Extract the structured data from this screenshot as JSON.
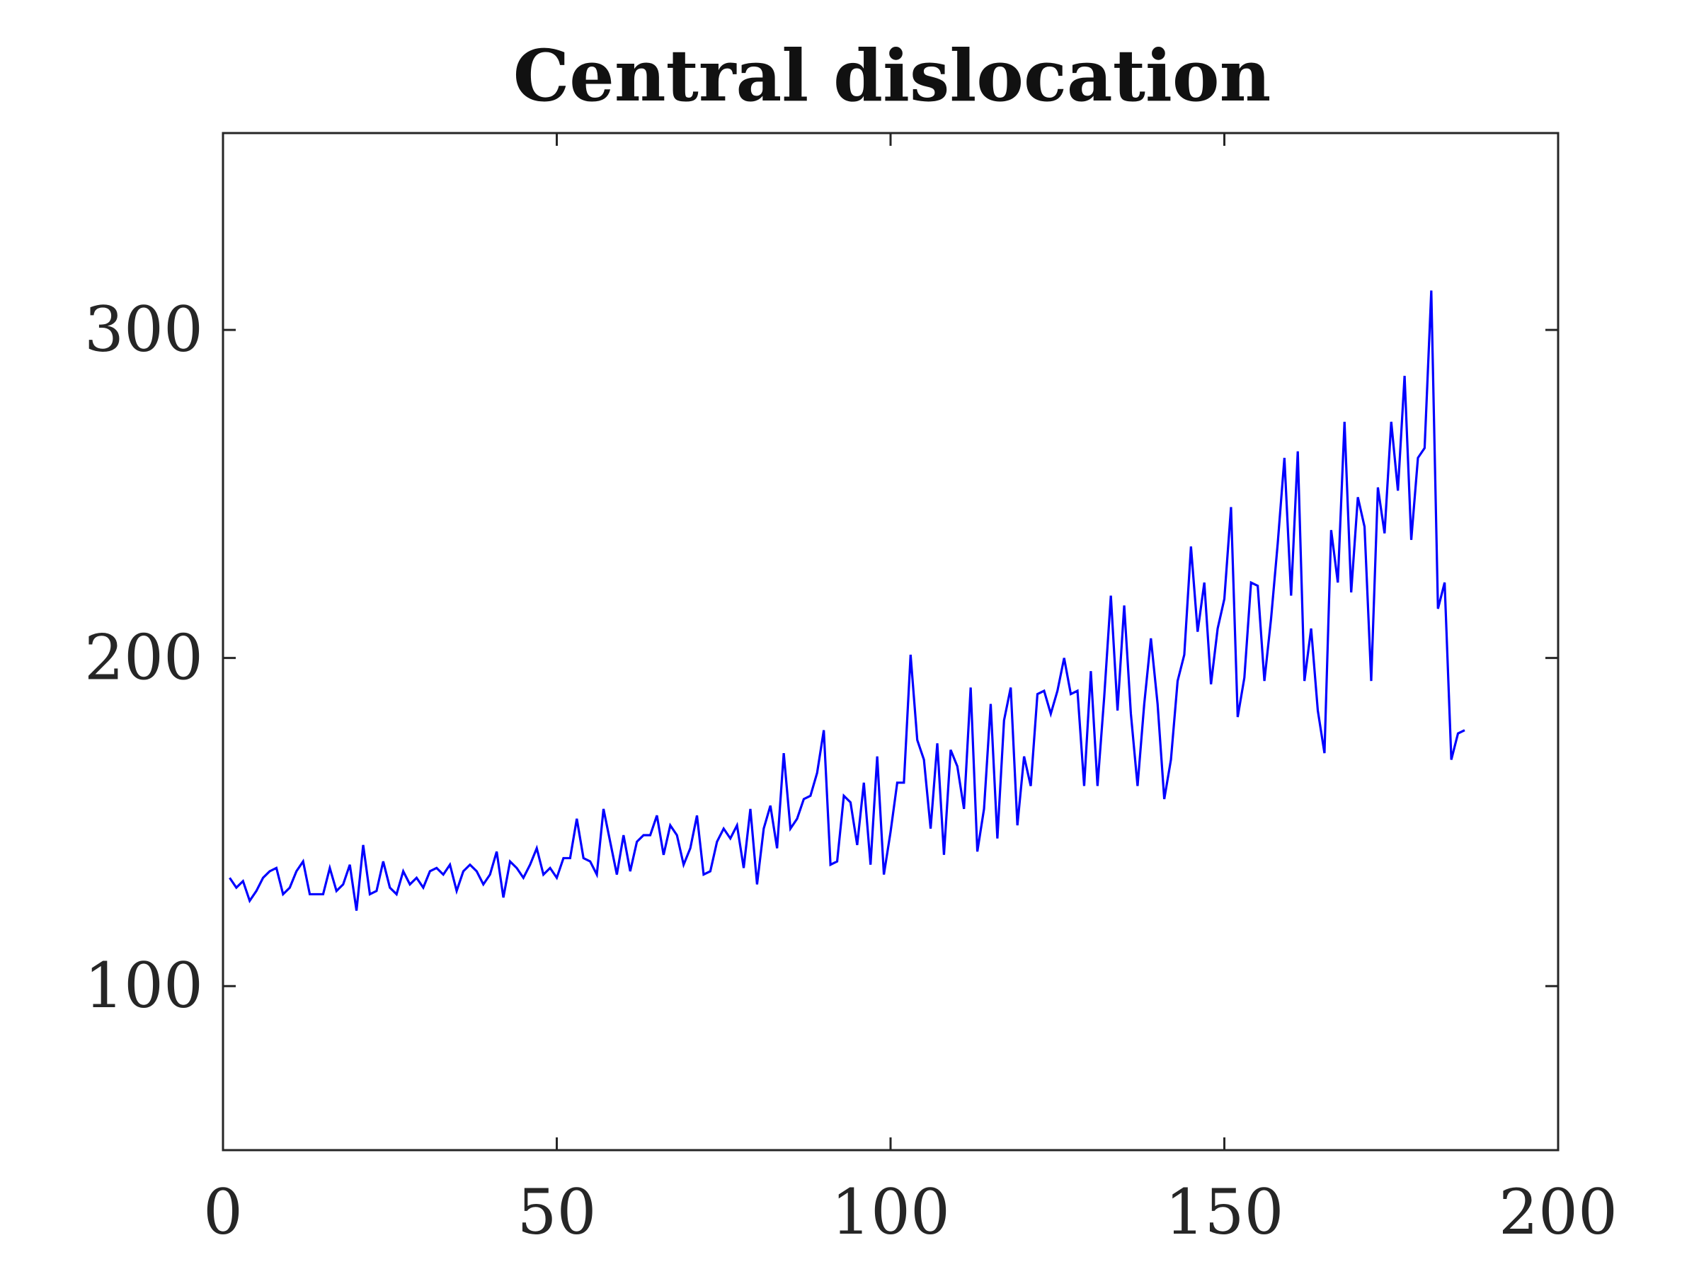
{
  "chart_data": {
    "type": "line",
    "title": "Central dislocation",
    "xlabel": "",
    "ylabel": "",
    "xlim": [
      0,
      200
    ],
    "ylim": [
      50,
      360
    ],
    "xticks": [
      0,
      50,
      100,
      150,
      200
    ],
    "yticks": [
      100,
      200,
      300
    ],
    "xtick_labels": [
      "0",
      "50",
      "100",
      "150",
      "200"
    ],
    "ytick_labels": [
      "100",
      "200",
      "300"
    ],
    "grid": false,
    "box": true,
    "series": [
      {
        "color": "#0000ff",
        "x": [
          1,
          2,
          3,
          4,
          5,
          6,
          7,
          8,
          9,
          10,
          11,
          12,
          13,
          14,
          15,
          16,
          17,
          18,
          19,
          20,
          21,
          22,
          23,
          24,
          25,
          26,
          27,
          28,
          29,
          30,
          31,
          32,
          33,
          34,
          35,
          36,
          37,
          38,
          39,
          40,
          41,
          42,
          43,
          44,
          45,
          46,
          47,
          48,
          49,
          50,
          51,
          52,
          53,
          54,
          55,
          56,
          57,
          58,
          59,
          60,
          61,
          62,
          63,
          64,
          65,
          66,
          67,
          68,
          69,
          70,
          71,
          72,
          73,
          74,
          75,
          76,
          77,
          78,
          79,
          80,
          81,
          82,
          83,
          84,
          85,
          86,
          87,
          88,
          89,
          90,
          91,
          92,
          93,
          94,
          95,
          96,
          97,
          98,
          99,
          100,
          101,
          102,
          103,
          104,
          105,
          106,
          107,
          108,
          109,
          110,
          111,
          112,
          113,
          114,
          115,
          116,
          117,
          118,
          119,
          120,
          121,
          122,
          123,
          124,
          125,
          126,
          127,
          128,
          129,
          130,
          131,
          132,
          133,
          134,
          135,
          136,
          137,
          138,
          139,
          140,
          141,
          142,
          143,
          144,
          145,
          146,
          147,
          148,
          149,
          150,
          151,
          152,
          153,
          154,
          155,
          156,
          157,
          158,
          159,
          160,
          161,
          162,
          163,
          164,
          165,
          166,
          167,
          168,
          169,
          170,
          171,
          172,
          173,
          174,
          175,
          176,
          177,
          178,
          179,
          180,
          181,
          182,
          183,
          184,
          185,
          186
        ],
        "y": [
          133,
          130,
          132,
          126,
          129,
          133,
          135,
          136,
          128,
          130,
          135,
          138,
          128,
          128,
          128,
          136,
          129,
          131,
          137,
          123,
          143,
          128,
          129,
          138,
          130,
          128,
          135,
          131,
          133,
          130,
          135,
          136,
          134,
          137,
          129,
          135,
          137,
          135,
          131,
          134,
          141,
          127,
          138,
          136,
          133,
          137,
          142,
          134,
          136,
          133,
          139,
          139,
          151,
          139,
          138,
          134,
          154,
          144,
          134,
          146,
          135,
          144,
          146,
          146,
          152,
          140,
          149,
          146,
          137,
          142,
          152,
          134,
          135,
          144,
          148,
          145,
          149,
          136,
          154,
          131,
          148,
          155,
          142,
          171,
          148,
          151,
          157,
          158,
          165,
          178,
          137,
          138,
          158,
          156,
          143,
          162,
          137,
          170,
          134,
          147,
          162,
          162,
          201,
          175,
          169,
          148,
          174,
          140,
          172,
          167,
          154,
          191,
          141,
          154,
          186,
          145,
          181,
          191,
          149,
          170,
          161,
          189,
          190,
          183,
          190,
          200,
          189,
          190,
          161,
          196,
          161,
          188,
          219,
          184,
          216,
          183,
          161,
          186,
          206,
          186,
          157,
          169,
          193,
          201,
          234,
          208,
          223,
          192,
          209,
          218,
          246,
          182,
          194,
          223,
          222,
          193,
          212,
          235,
          261,
          219,
          263,
          193,
          209,
          184,
          171,
          239,
          223,
          272,
          220,
          249,
          240,
          193,
          252,
          238,
          272,
          251,
          286,
          236,
          261,
          264,
          312,
          215,
          223,
          169,
          177,
          178
        ]
      }
    ]
  }
}
